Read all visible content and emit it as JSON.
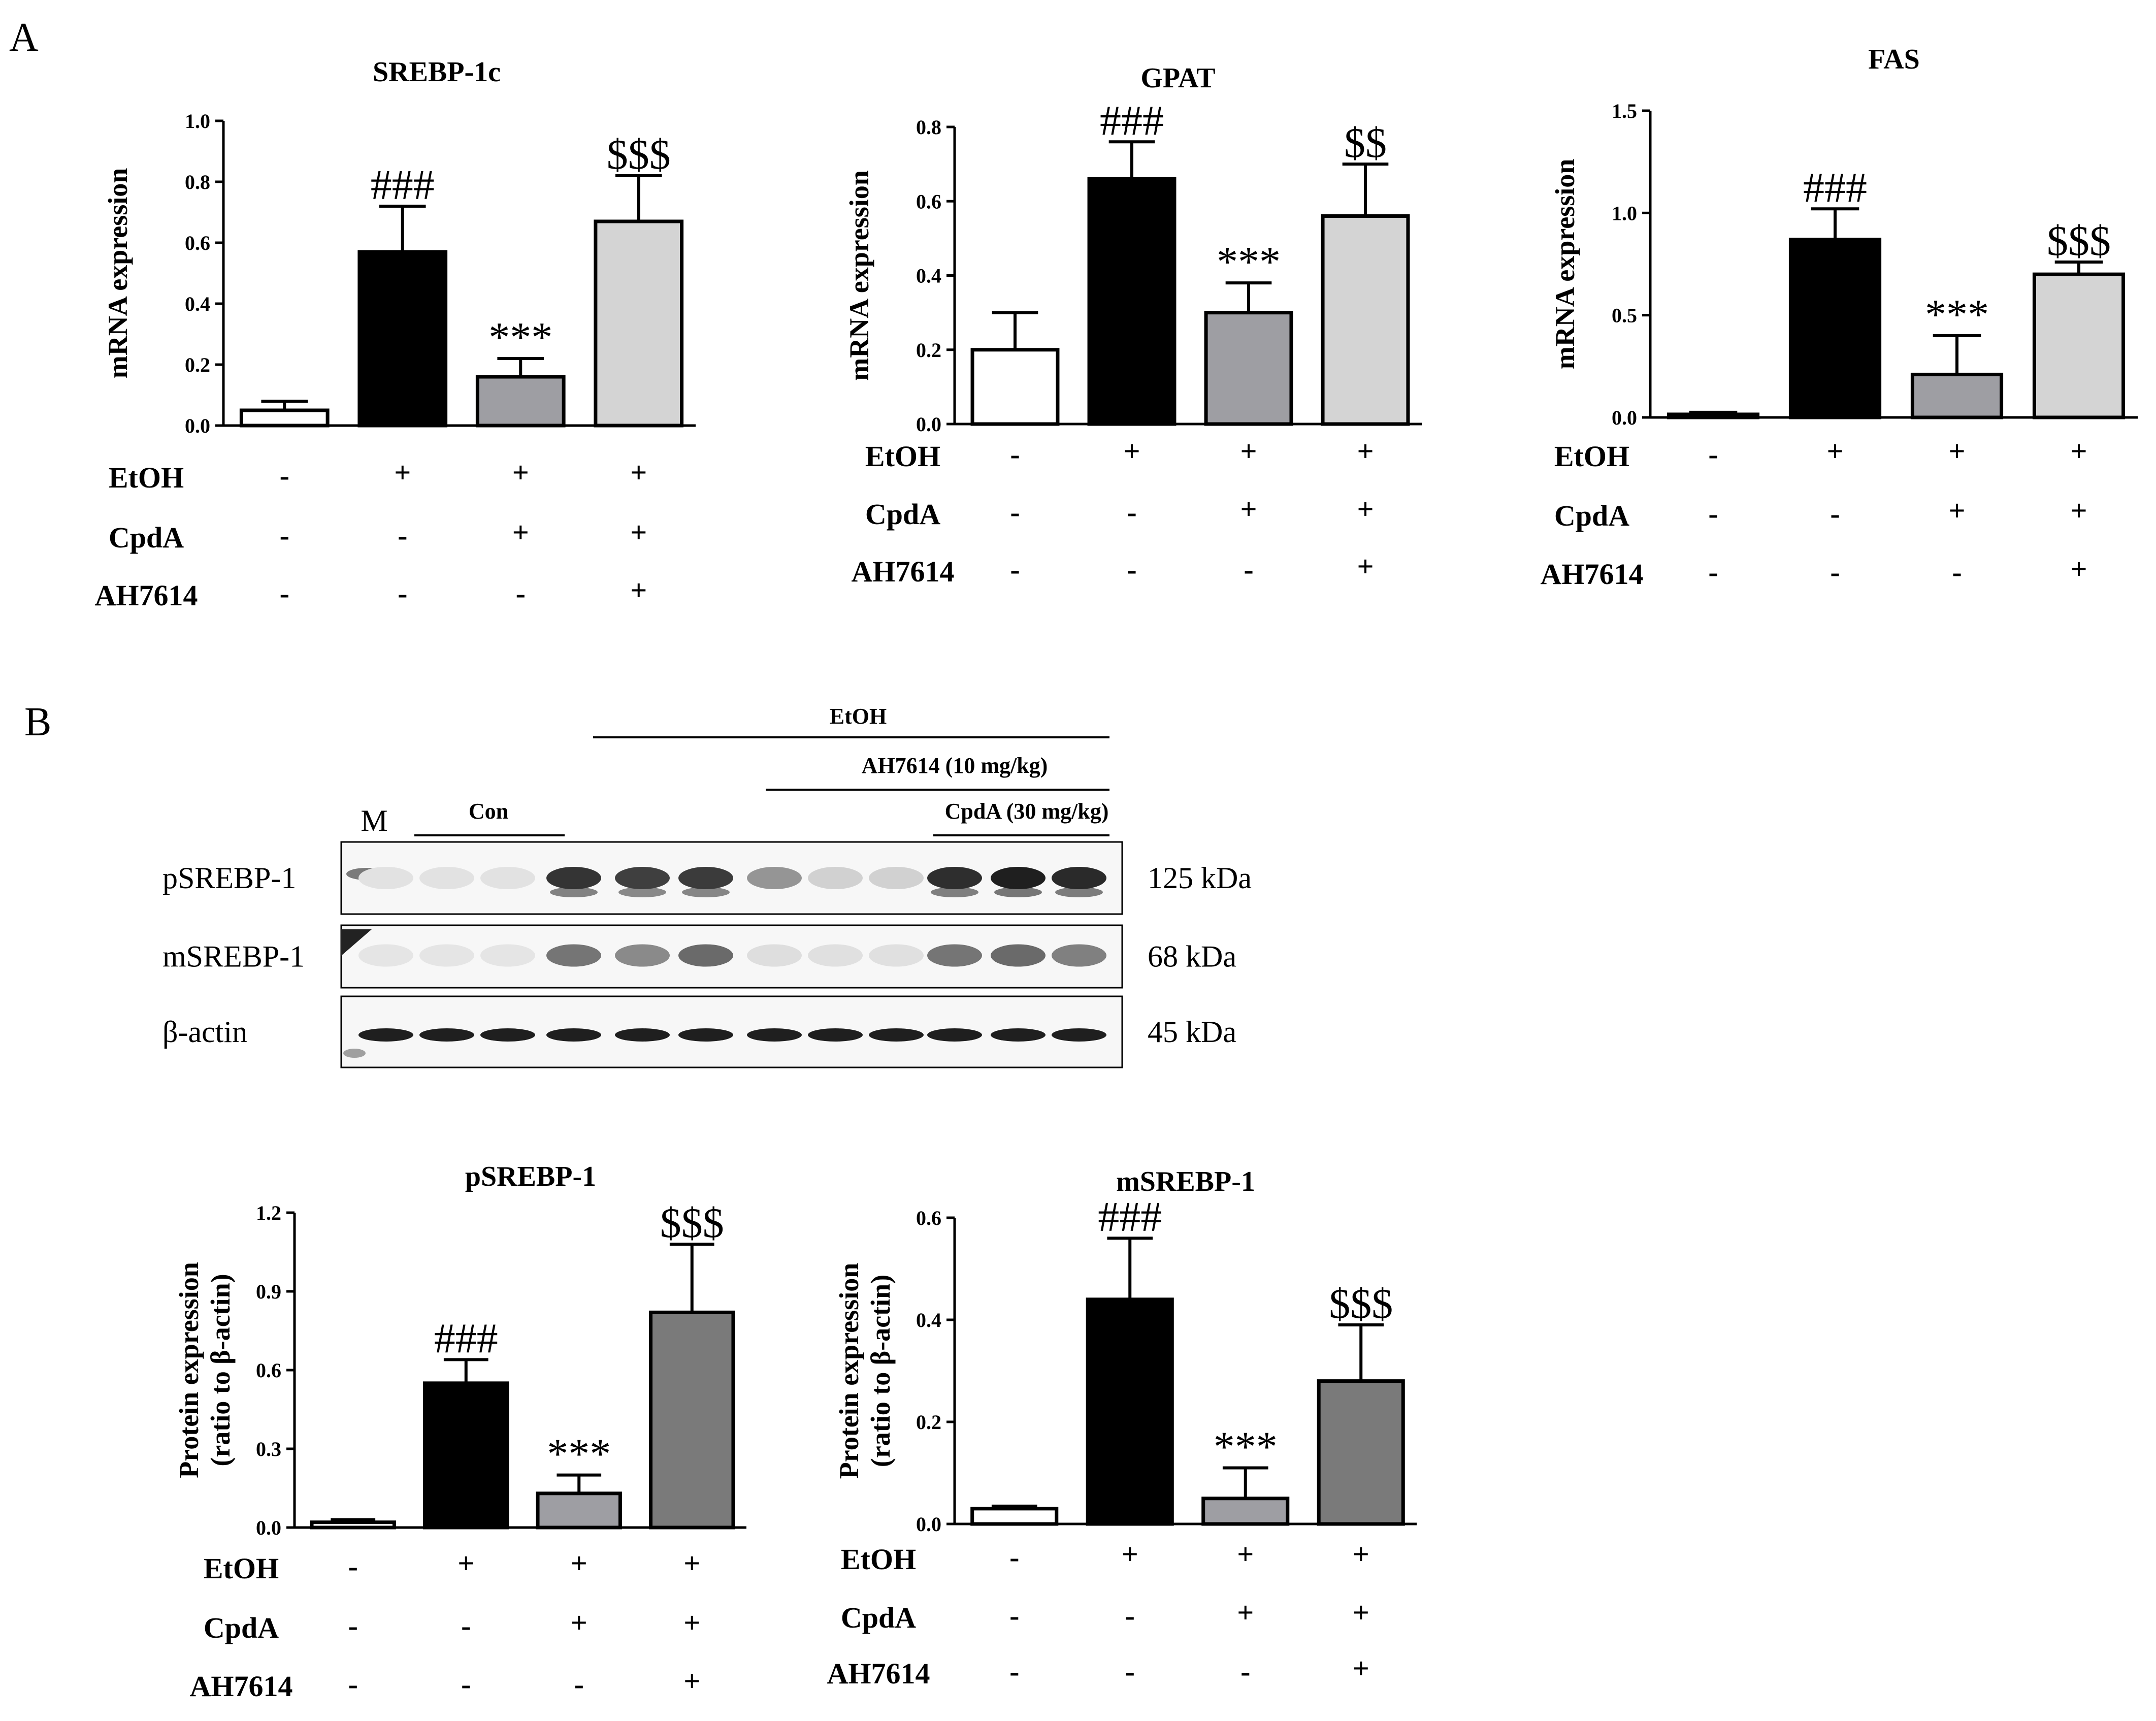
{
  "panels": {
    "a": "A",
    "b": "B"
  },
  "colors": {
    "control": "#ffffff",
    "etoh": "#000000",
    "etoh_cpda": "#9e9ea3",
    "etoh_cpda_ah_light": "#d4d4d4",
    "etoh_cpda_ah_dark": "#7a7a7a"
  },
  "chart_data": [
    {
      "type": "bar",
      "title": "SREBP-1c",
      "ylabel": "mRNA expression",
      "ylim": [
        0,
        1.0
      ],
      "yticks": [
        "0.0",
        "0.2",
        "0.4",
        "0.6",
        "0.8",
        "1.0"
      ],
      "values": [
        0.05,
        0.57,
        0.16,
        0.67
      ],
      "errors": [
        0.03,
        0.15,
        0.06,
        0.15
      ],
      "significance": [
        "",
        "###",
        "***",
        "$$$"
      ],
      "conditions": [
        {
          "label": "EtOH",
          "signs": [
            "-",
            "+",
            "+",
            "+"
          ]
        },
        {
          "label": "CpdA",
          "signs": [
            "-",
            "-",
            "+",
            "+"
          ]
        },
        {
          "label": "AH7614",
          "signs": [
            "-",
            "-",
            "-",
            "+"
          ]
        }
      ]
    },
    {
      "type": "bar",
      "title": "GPAT",
      "ylabel": "mRNA expression",
      "ylim": [
        0,
        0.8
      ],
      "yticks": [
        "0.0",
        "0.2",
        "0.4",
        "0.6",
        "0.8"
      ],
      "values": [
        0.2,
        0.66,
        0.3,
        0.56
      ],
      "errors": [
        0.1,
        0.1,
        0.08,
        0.14
      ],
      "significance": [
        "",
        "###",
        "***",
        "$$"
      ],
      "conditions": [
        {
          "label": "EtOH",
          "signs": [
            "-",
            "+",
            "+",
            "+"
          ]
        },
        {
          "label": "CpdA",
          "signs": [
            "-",
            "-",
            "+",
            "+"
          ]
        },
        {
          "label": "AH7614",
          "signs": [
            "-",
            "-",
            "-",
            "+"
          ]
        }
      ]
    },
    {
      "type": "bar",
      "title": "FAS",
      "ylabel": "mRNA expression",
      "ylim": [
        0,
        1.5
      ],
      "yticks": [
        "0.0",
        "0.5",
        "1.0",
        "1.5"
      ],
      "values": [
        0.015,
        0.87,
        0.21,
        0.7
      ],
      "errors": [
        0.01,
        0.15,
        0.19,
        0.06
      ],
      "significance": [
        "",
        "###",
        "***",
        "$$$"
      ],
      "conditions": [
        {
          "label": "EtOH",
          "signs": [
            "-",
            "+",
            "+",
            "+"
          ]
        },
        {
          "label": "CpdA",
          "signs": [
            "-",
            "-",
            "+",
            "+"
          ]
        },
        {
          "label": "AH7614",
          "signs": [
            "-",
            "-",
            "-",
            "+"
          ]
        }
      ]
    },
    {
      "type": "bar",
      "title": "pSREBP-1",
      "ylabel": [
        "Protein expression",
        "(ratio to β-actin)"
      ],
      "ylim": [
        0,
        1.2
      ],
      "yticks": [
        "0.0",
        "0.3",
        "0.6",
        "0.9",
        "1.2"
      ],
      "values": [
        0.02,
        0.55,
        0.13,
        0.82
      ],
      "errors": [
        0.01,
        0.09,
        0.07,
        0.26
      ],
      "significance": [
        "",
        "###",
        "***",
        "$$$"
      ],
      "conditions": [
        {
          "label": "EtOH",
          "signs": [
            "-",
            "+",
            "+",
            "+"
          ]
        },
        {
          "label": "CpdA",
          "signs": [
            "-",
            "-",
            "+",
            "+"
          ]
        },
        {
          "label": "AH7614",
          "signs": [
            "-",
            "-",
            "-",
            "+"
          ]
        }
      ]
    },
    {
      "type": "bar",
      "title": "mSREBP-1",
      "ylabel": [
        "Protein expression",
        "(ratio to β-actin)"
      ],
      "ylim": [
        0,
        0.6
      ],
      "yticks": [
        "0.0",
        "0.2",
        "0.4",
        "0.6"
      ],
      "values": [
        0.03,
        0.44,
        0.05,
        0.28
      ],
      "errors": [
        0.005,
        0.12,
        0.06,
        0.11
      ],
      "significance": [
        "",
        "###",
        "***",
        "$$$"
      ],
      "conditions": [
        {
          "label": "EtOH",
          "signs": [
            "-",
            "+",
            "+",
            "+"
          ]
        },
        {
          "label": "CpdA",
          "signs": [
            "-",
            "-",
            "+",
            "+"
          ]
        },
        {
          "label": "AH7614",
          "signs": [
            "-",
            "-",
            "-",
            "+"
          ]
        }
      ]
    }
  ],
  "blot": {
    "header_etoh": "EtOH",
    "header_ah": "AH7614 (10 mg/kg)",
    "header_cpda": "CpdA (30 mg/kg)",
    "marker": "M",
    "control": "Con",
    "rows": [
      {
        "name": "pSREBP-1",
        "size": "125 kDa"
      },
      {
        "name": "mSREBP-1",
        "size": "68 kDa"
      },
      {
        "name": "β-actin",
        "size": "45 kDa"
      }
    ],
    "band_intensity": [
      [
        0.04,
        0.04,
        0.04,
        0.85,
        0.8,
        0.82,
        0.4,
        0.12,
        0.12,
        0.88,
        0.95,
        0.9
      ],
      [
        0.03,
        0.03,
        0.03,
        0.55,
        0.45,
        0.6,
        0.06,
        0.05,
        0.05,
        0.55,
        0.6,
        0.5
      ],
      [
        0.95,
        0.95,
        0.95,
        0.95,
        0.95,
        0.95,
        0.95,
        0.95,
        0.95,
        0.95,
        0.95,
        0.95
      ]
    ]
  }
}
